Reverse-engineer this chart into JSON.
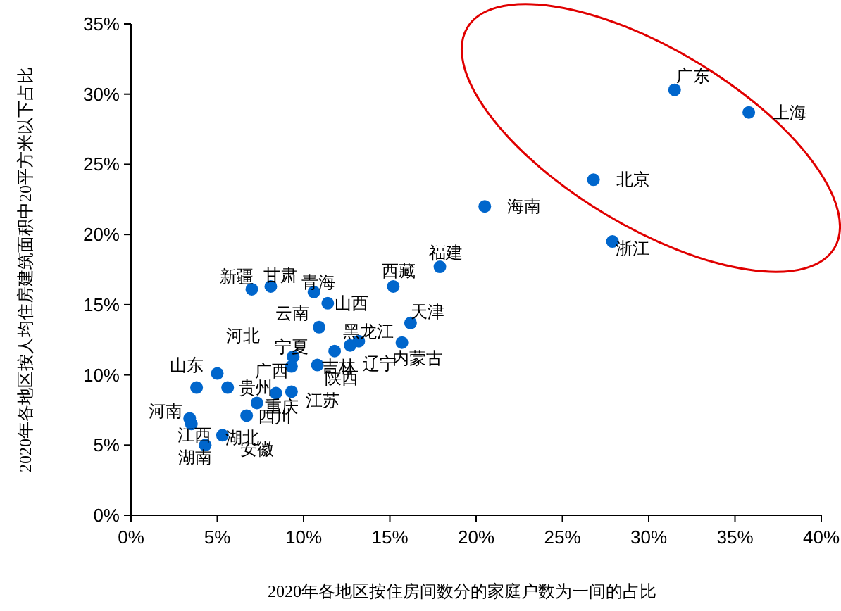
{
  "chart_data": {
    "type": "scatter",
    "xlabel": "2020年各地区按住房间数分的家庭户数为一间的占比",
    "ylabel": "2020年各地区按人均住房建筑面积中20平方米以下占比",
    "xlim": [
      0,
      40
    ],
    "ylim": [
      0,
      35
    ],
    "xticks": [
      {
        "value": 0,
        "label": "0%"
      },
      {
        "value": 5,
        "label": "5%"
      },
      {
        "value": 10,
        "label": "10%"
      },
      {
        "value": 15,
        "label": "15%"
      },
      {
        "value": 20,
        "label": "20%"
      },
      {
        "value": 25,
        "label": "25%"
      },
      {
        "value": 30,
        "label": "30%"
      },
      {
        "value": 35,
        "label": "35%"
      },
      {
        "value": 40,
        "label": "40%"
      }
    ],
    "yticks": [
      {
        "value": 0,
        "label": "0%"
      },
      {
        "value": 5,
        "label": "5%"
      },
      {
        "value": 10,
        "label": "10%"
      },
      {
        "value": 15,
        "label": "15%"
      },
      {
        "value": 20,
        "label": "20%"
      },
      {
        "value": 25,
        "label": "25%"
      },
      {
        "value": 30,
        "label": "30%"
      },
      {
        "value": 35,
        "label": "35%"
      }
    ],
    "grid": false,
    "marker": "circle",
    "series": [
      {
        "color": "#0066cc",
        "x": [
          31.5,
          35.8,
          26.8,
          20.5,
          27.9,
          17.9,
          15.2,
          16.2,
          15.7,
          7.0,
          8.1,
          10.6,
          11.4,
          10.9,
          5.0,
          3.8,
          5.6,
          9.3,
          8.4,
          7.3,
          6.7,
          3.4,
          3.5,
          5.3,
          4.3,
          13.2,
          12.7,
          11.8,
          9.4,
          9.3,
          10.8
        ],
        "values": [
          30.3,
          28.7,
          23.9,
          22.0,
          19.5,
          17.7,
          16.3,
          13.7,
          12.3,
          16.1,
          16.3,
          15.9,
          15.1,
          13.4,
          10.1,
          9.1,
          9.1,
          8.8,
          8.7,
          8.0,
          7.1,
          6.9,
          6.5,
          5.7,
          5.0,
          12.4,
          12.1,
          11.7,
          11.3,
          10.6,
          10.7
        ]
      }
    ],
    "annotations": [
      {
        "text": "广东",
        "x": 31.5,
        "y": 30.3
      },
      {
        "text": "上海",
        "x": 35.8,
        "y": 28.7
      },
      {
        "text": "北京",
        "x": 26.8,
        "y": 23.9
      },
      {
        "text": "海南",
        "x": 20.5,
        "y": 22.0
      },
      {
        "text": "浙江",
        "x": 27.9,
        "y": 19.5
      },
      {
        "text": "福建",
        "x": 17.9,
        "y": 17.7
      },
      {
        "text": "西藏",
        "x": 15.2,
        "y": 16.3
      },
      {
        "text": "天津",
        "x": 16.2,
        "y": 13.7
      },
      {
        "text": "内蒙古",
        "x": 15.7,
        "y": 12.3
      },
      {
        "text": "新疆",
        "x": 7.0,
        "y": 16.1
      },
      {
        "text": "甘肃",
        "x": 8.1,
        "y": 16.3
      },
      {
        "text": "青海",
        "x": 10.6,
        "y": 15.9
      },
      {
        "text": "山西",
        "x": 11.4,
        "y": 15.1
      },
      {
        "text": "云南",
        "x": 10.9,
        "y": 13.4
      },
      {
        "text": "河北",
        "x": 5.0,
        "y": 10.1
      },
      {
        "text": "山东",
        "x": 3.8,
        "y": 9.1
      },
      {
        "text": "贵州",
        "x": 5.6,
        "y": 9.1
      },
      {
        "text": "江苏",
        "x": 9.3,
        "y": 8.8
      },
      {
        "text": "重庆",
        "x": 8.4,
        "y": 8.7
      },
      {
        "text": "安徽",
        "x": 7.3,
        "y": 8.0
      },
      {
        "text": "四川",
        "x": 6.7,
        "y": 7.1
      },
      {
        "text": "河南",
        "x": 3.4,
        "y": 6.9
      },
      {
        "text": "江西",
        "x": 3.5,
        "y": 6.5
      },
      {
        "text": "湖北",
        "x": 5.3,
        "y": 5.7
      },
      {
        "text": "湖南",
        "x": 4.3,
        "y": 5.0
      },
      {
        "text": "黑龙江",
        "x": 13.2,
        "y": 12.4
      },
      {
        "text": "吉林",
        "x": 12.7,
        "y": 12.1
      },
      {
        "text": "辽宁",
        "x": 11.8,
        "y": 11.7
      },
      {
        "text": "宁夏",
        "x": 9.4,
        "y": 11.3
      },
      {
        "text": "广西",
        "x": 9.3,
        "y": 10.6
      },
      {
        "text": "陕西",
        "x": 10.8,
        "y": 10.7
      }
    ]
  }
}
